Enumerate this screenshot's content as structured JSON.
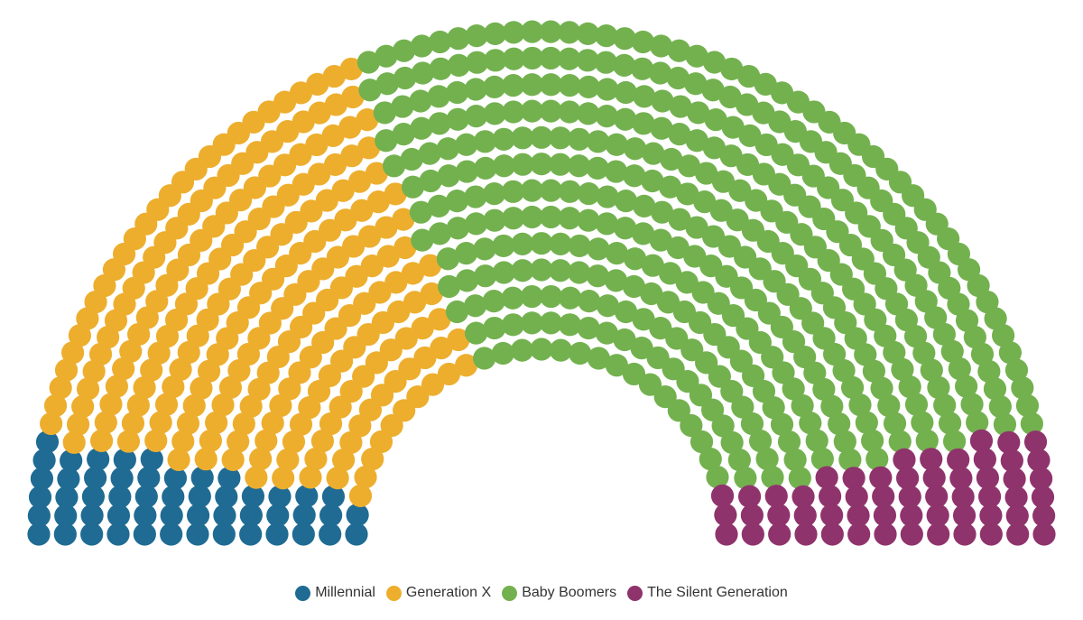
{
  "chart_data": {
    "type": "parliament",
    "title": "",
    "series": [
      {
        "name": "Millennial",
        "value": 52,
        "color": "#1f6b93"
      },
      {
        "name": "Generation X",
        "value": 236,
        "color": "#edae2e"
      },
      {
        "name": "Baby Boomers",
        "value": 414,
        "color": "#73b14f"
      },
      {
        "name": "The Silent Generation",
        "value": 57,
        "color": "#8f336c"
      }
    ],
    "legend_position": "bottom-center"
  }
}
